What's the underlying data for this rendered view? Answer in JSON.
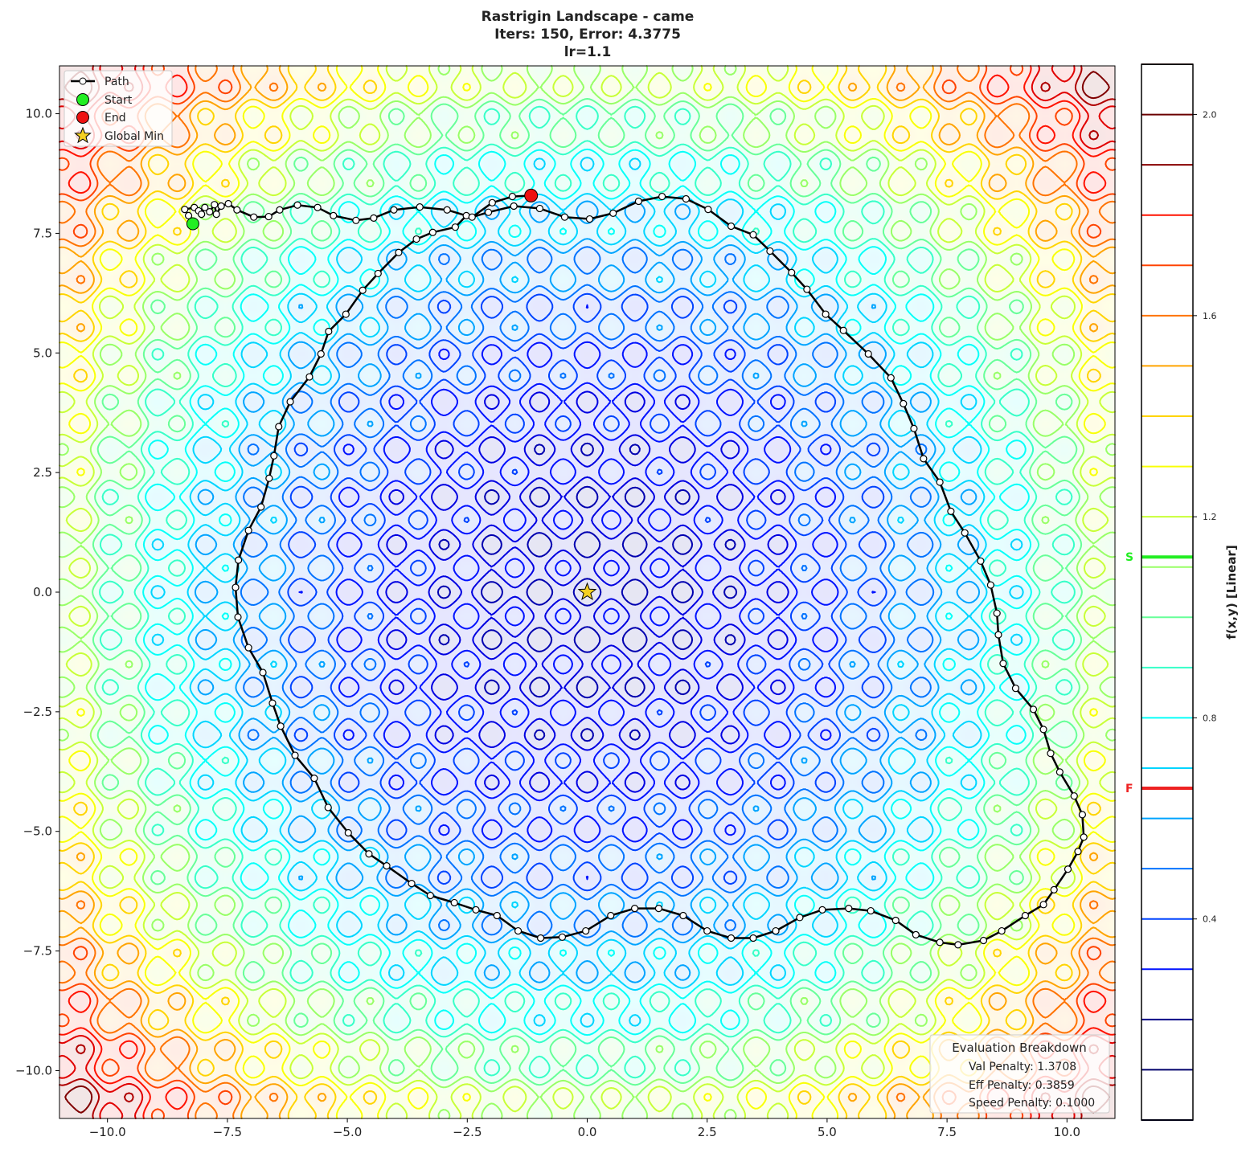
{
  "chart_data": {
    "type": "contour",
    "title_lines": [
      "Rastrigin Landscape - came",
      "Iters: 150, Error: 4.3775",
      "lr=1.1"
    ],
    "xlim": [
      -11,
      11
    ],
    "ylim": [
      -11,
      11
    ],
    "xticks": [
      -10,
      -7.5,
      -5,
      -2.5,
      0,
      2.5,
      5,
      7.5,
      10
    ],
    "xtick_labels": [
      "−10.0",
      "−7.5",
      "−5.0",
      "−2.5",
      "0.0",
      "2.5",
      "5.0",
      "7.5",
      "10.0"
    ],
    "yticks": [
      -10,
      -7.5,
      -5,
      -2.5,
      0,
      2.5,
      5,
      7.5,
      10
    ],
    "ytick_labels": [
      "−10.0",
      "−7.5",
      "−5.0",
      "−2.5",
      "0.0",
      "2.5",
      "5.0",
      "7.5",
      "10.0"
    ],
    "grid": false,
    "colormap": "jet",
    "colorbar": {
      "label": "f(x,y) [Linear]",
      "range": [
        0,
        2.1
      ],
      "level_step": 0.1,
      "ticks": [
        0.4,
        0.8,
        1.2,
        1.6,
        2.0
      ],
      "tick_labels": [
        "0.4",
        "0.8",
        "1.2",
        "1.6",
        "2.0"
      ],
      "markers": [
        {
          "label": "S",
          "value": 1.12,
          "color": "#22ee22"
        },
        {
          "label": "F",
          "value": 0.66,
          "color": "#ee2222"
        }
      ]
    },
    "legend": {
      "placement": "upper-left",
      "entries": [
        "Path",
        "Start",
        "End",
        "Global Min"
      ]
    },
    "start": [
      -8.22,
      7.7
    ],
    "end": [
      -1.17,
      8.29
    ],
    "global_min": [
      0,
      0
    ],
    "path": [
      [
        -8.22,
        7.7
      ],
      [
        -8.31,
        7.87
      ],
      [
        -8.39,
        8.0
      ],
      [
        -8.19,
        8.04
      ],
      [
        -8.1,
        7.97
      ],
      [
        -8.04,
        7.9
      ],
      [
        -7.97,
        8.04
      ],
      [
        -7.87,
        7.95
      ],
      [
        -7.77,
        8.1
      ],
      [
        -7.73,
        7.9
      ],
      [
        -7.63,
        8.07
      ],
      [
        -7.48,
        8.12
      ],
      [
        -7.3,
        7.99
      ],
      [
        -6.95,
        7.84
      ],
      [
        -6.64,
        7.85
      ],
      [
        -6.41,
        7.99
      ],
      [
        -6.04,
        8.09
      ],
      [
        -5.62,
        8.04
      ],
      [
        -5.29,
        7.87
      ],
      [
        -4.82,
        7.77
      ],
      [
        -4.45,
        7.82
      ],
      [
        -4.03,
        7.99
      ],
      [
        -3.49,
        8.05
      ],
      [
        -2.92,
        7.99
      ],
      [
        -2.52,
        7.87
      ],
      [
        -2.75,
        7.63
      ],
      [
        -3.22,
        7.52
      ],
      [
        -3.56,
        7.38
      ],
      [
        -3.93,
        7.1
      ],
      [
        -4.36,
        6.66
      ],
      [
        -4.68,
        6.31
      ],
      [
        -5.03,
        5.81
      ],
      [
        -5.39,
        5.45
      ],
      [
        -5.55,
        4.98
      ],
      [
        -5.79,
        4.5
      ],
      [
        -6.19,
        3.98
      ],
      [
        -6.43,
        3.46
      ],
      [
        -6.53,
        2.85
      ],
      [
        -6.63,
        2.38
      ],
      [
        -6.8,
        1.78
      ],
      [
        -7.06,
        1.29
      ],
      [
        -7.27,
        0.67
      ],
      [
        -7.33,
        0.1
      ],
      [
        -7.28,
        -0.52
      ],
      [
        -7.06,
        -1.16
      ],
      [
        -6.76,
        -1.68
      ],
      [
        -6.56,
        -2.32
      ],
      [
        -6.39,
        -2.8
      ],
      [
        -6.09,
        -3.41
      ],
      [
        -5.69,
        -3.89
      ],
      [
        -5.4,
        -4.5
      ],
      [
        -4.98,
        -5.03
      ],
      [
        -4.55,
        -5.47
      ],
      [
        -4.18,
        -5.72
      ],
      [
        -3.66,
        -6.09
      ],
      [
        -3.27,
        -6.34
      ],
      [
        -2.77,
        -6.49
      ],
      [
        -2.32,
        -6.64
      ],
      [
        -1.88,
        -6.76
      ],
      [
        -1.44,
        -7.08
      ],
      [
        -0.97,
        -7.23
      ],
      [
        -0.52,
        -7.21
      ],
      [
        -0.03,
        -7.08
      ],
      [
        0.49,
        -6.76
      ],
      [
        0.99,
        -6.61
      ],
      [
        1.49,
        -6.61
      ],
      [
        2.0,
        -6.76
      ],
      [
        2.5,
        -7.08
      ],
      [
        3.0,
        -7.23
      ],
      [
        3.46,
        -7.23
      ],
      [
        3.93,
        -7.08
      ],
      [
        4.43,
        -6.8
      ],
      [
        4.9,
        -6.64
      ],
      [
        5.45,
        -6.61
      ],
      [
        5.91,
        -6.66
      ],
      [
        6.43,
        -6.86
      ],
      [
        6.85,
        -7.16
      ],
      [
        7.35,
        -7.32
      ],
      [
        7.73,
        -7.37
      ],
      [
        8.26,
        -7.28
      ],
      [
        8.64,
        -7.08
      ],
      [
        9.13,
        -6.76
      ],
      [
        9.51,
        -6.53
      ],
      [
        9.73,
        -6.22
      ],
      [
        10.02,
        -5.79
      ],
      [
        10.23,
        -5.42
      ],
      [
        10.35,
        -5.12
      ],
      [
        10.32,
        -4.65
      ],
      [
        10.15,
        -4.26
      ],
      [
        9.85,
        -3.76
      ],
      [
        9.66,
        -3.37
      ],
      [
        9.51,
        -2.87
      ],
      [
        9.3,
        -2.45
      ],
      [
        8.93,
        -2.01
      ],
      [
        8.67,
        -1.49
      ],
      [
        8.57,
        -0.89
      ],
      [
        8.54,
        -0.44
      ],
      [
        8.41,
        0.15
      ],
      [
        8.2,
        0.65
      ],
      [
        7.87,
        1.24
      ],
      [
        7.58,
        1.69
      ],
      [
        7.35,
        2.3
      ],
      [
        7.01,
        2.79
      ],
      [
        6.81,
        3.42
      ],
      [
        6.59,
        3.94
      ],
      [
        6.33,
        4.48
      ],
      [
        5.86,
        4.98
      ],
      [
        5.34,
        5.47
      ],
      [
        4.97,
        5.81
      ],
      [
        4.58,
        6.33
      ],
      [
        4.26,
        6.68
      ],
      [
        3.81,
        7.13
      ],
      [
        3.46,
        7.47
      ],
      [
        3.0,
        7.65
      ],
      [
        2.52,
        8.0
      ],
      [
        2.06,
        8.22
      ],
      [
        1.56,
        8.27
      ],
      [
        1.07,
        8.17
      ],
      [
        0.54,
        7.92
      ],
      [
        0.05,
        7.8
      ],
      [
        -0.47,
        7.84
      ],
      [
        -0.99,
        8.02
      ],
      [
        -1.53,
        8.07
      ],
      [
        -2.06,
        7.94
      ],
      [
        -2.4,
        7.84
      ],
      [
        -1.98,
        8.14
      ],
      [
        -1.56,
        8.27
      ],
      [
        -1.17,
        8.29
      ]
    ],
    "colors": {
      "path": "#000000",
      "start": "#22ee22",
      "end": "#ee1111",
      "global_min": "#f5d020"
    }
  },
  "evaluation": {
    "title": "Evaluation Breakdown",
    "lines": [
      "Val Penalty: 1.3708",
      "Eff Penalty: 0.3859",
      "Speed Penalty: 0.1000"
    ]
  }
}
